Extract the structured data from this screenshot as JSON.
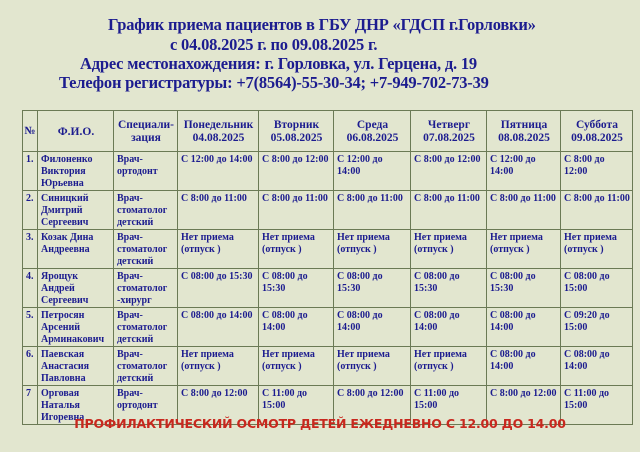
{
  "header": {
    "title": "График приема пациентов в ГБУ ДНР «ГДСП г.Горловки»",
    "period": "с 04.08.2025 г.  по  09.08.2025 г.",
    "address": "Адрес местонахождения: г. Горловка,  ул. Герцена, д. 19",
    "phone": "Телефон регистратуры: +7(8564)-55-30-34;  +7-949-702-73-39"
  },
  "table": {
    "columns": [
      "№",
      "Ф.И.О.",
      "Специали-зация",
      "Понедельник 04.08.2025",
      "Вторник 05.08.2025",
      "Среда 06.08.2025",
      "Четверг 07.08.2025",
      "Пятница 08.08.2025",
      "Суббота 09.08.2025"
    ],
    "rows": [
      {
        "num": "1.",
        "name": "Филоненко Виктория Юрьевна",
        "spec": "Врач-ортодонт",
        "days": [
          "С 12:00 до 14:00",
          "С 8:00 до 12:00",
          "С 12:00 до 14:00",
          "С 8:00 до 12:00",
          "С 12:00 до 14:00",
          "С 8:00 до 12:00"
        ]
      },
      {
        "num": "2.",
        "name": "Синицкий Дмитрий Сергеевич",
        "spec": "Врач-стоматолог детский",
        "days": [
          "С 8:00 до 11:00",
          "С 8:00 до 11:00",
          "С 8:00 до 11:00",
          "С 8:00 до 11:00",
          "С 8:00 до 11:00",
          "С 8:00 до 11:00"
        ]
      },
      {
        "num": "3.",
        "name": "Козак Дина Андреевна",
        "spec": "Врач-стоматолог детский",
        "days": [
          "Нет приема (отпуск )",
          "Нет приема (отпуск )",
          "Нет приема (отпуск )",
          "Нет приема (отпуск )",
          "Нет приема (отпуск )",
          "Нет приема (отпуск )"
        ]
      },
      {
        "num": "4.",
        "name": "Ярощук Андрей Сергеевич",
        "spec": "Врач-стоматолог -хирург",
        "days": [
          "С 08:00 до 15:30",
          "С 08:00 до 15:30",
          "С 08:00 до 15:30",
          "С 08:00 до 15:30",
          "С 08:00 до 15:30",
          "С 08:00 до 15:00"
        ]
      },
      {
        "num": "5.",
        "name": "Петросян Арсений Арминакович",
        "spec": "Врач-стоматолог детский",
        "days": [
          "С 08:00 до 14:00",
          "С 08:00 до 14:00",
          "С 08:00 до 14:00",
          "С 08:00 до 14:00",
          "С 08:00 до 14:00",
          "С 09:20 до 15:00"
        ]
      },
      {
        "num": "6.",
        "name": "Паевская Анастасия Павловна",
        "spec": "Врач-стоматолог детский",
        "days": [
          "Нет приема (отпуск )",
          "Нет приема (отпуск )",
          "Нет приема (отпуск )",
          "Нет приема (отпуск )",
          "С 08:00 до 14:00",
          "С 08:00 до 14:00"
        ]
      },
      {
        "num": "7",
        "name": "Орговая Наталья Игоревна",
        "spec": "Врач-ортодонт",
        "days": [
          "С 8:00 до 12:00",
          "С 11:00 до 15:00",
          "С 8:00 до 12:00",
          "С 11:00 до 15:00",
          "С 8:00 до 12:00",
          "С 11:00 до 15:00"
        ]
      }
    ]
  },
  "footer": "ПРОФИЛАКТИЧЕСКИЙ ОСМОТР ДЕТЕЙ ЕЖЕДНЕВНО С 12.00 ДО 14.00",
  "colors": {
    "text": "#1c1c8f",
    "footer": "#c8281e",
    "background": "#e2e6cf"
  }
}
